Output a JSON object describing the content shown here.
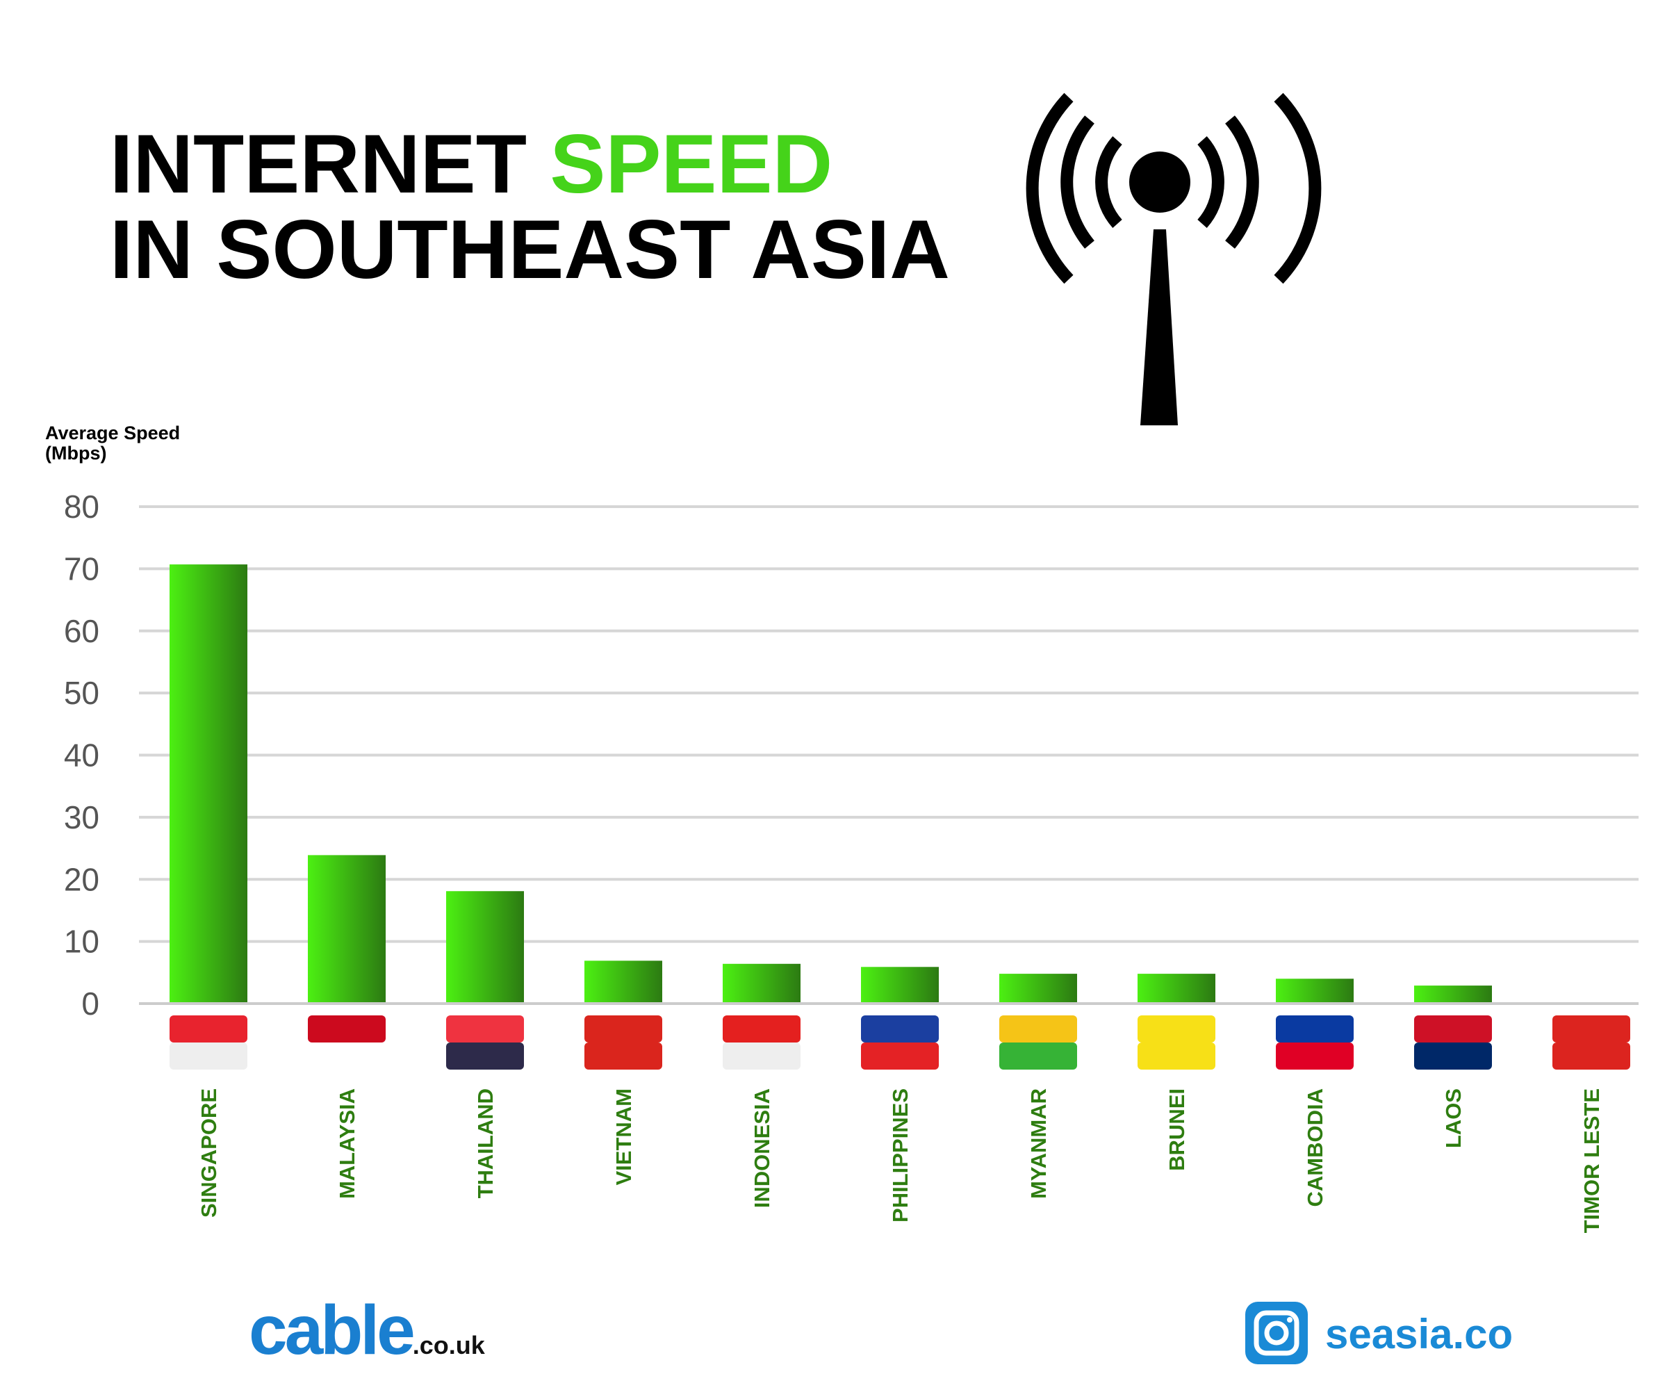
{
  "header": {
    "title_part1": "INTERNET",
    "title_highlight": "SPEED",
    "title_line2": "IN SOUTHEAST ASIA"
  },
  "chart_data": {
    "type": "bar",
    "y_label_lines": [
      "Average Speed",
      "(Mbps)"
    ],
    "categories": [
      "SINGAPORE",
      "MALAYSIA",
      "THAILAND",
      "VIETNAM",
      "INDONESIA",
      "PHILIPPINES",
      "MYANMAR",
      "BRUNEI",
      "CAMBODIA",
      "LAOS",
      "TIMOR LESTE"
    ],
    "values": [
      70.7,
      23.9,
      18.1,
      6.9,
      6.4,
      5.9,
      4.8,
      4.8,
      4.0,
      2.9,
      0
    ],
    "color": "#4cf012",
    "ylim": [
      0,
      80
    ],
    "yticks": [
      0,
      10,
      20,
      30,
      40,
      50,
      60,
      70,
      80
    ],
    "grid": true
  },
  "footer": {
    "cable_brand": "cable",
    "cable_domain": ".co.uk",
    "social_handle": "seasia.co"
  }
}
